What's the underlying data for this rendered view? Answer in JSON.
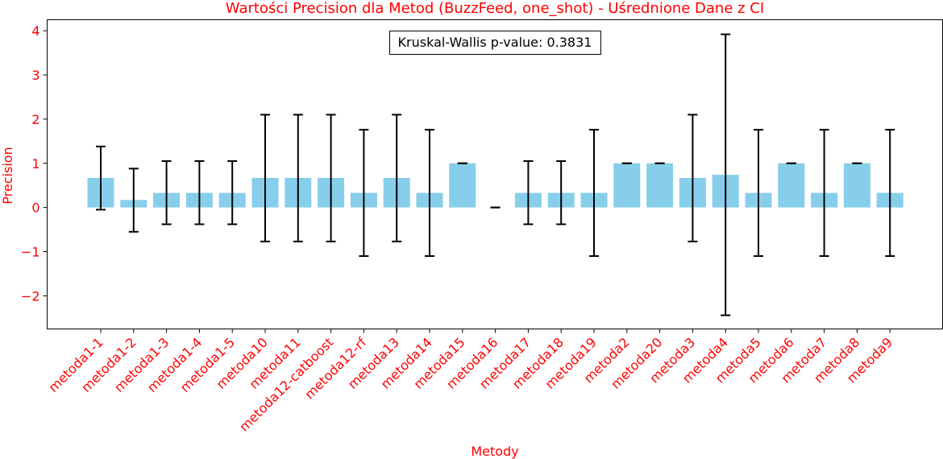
{
  "chart_data": {
    "type": "bar",
    "title": "Wartości Precision dla Metod (BuzzFeed, one_shot) - Uśrednione Dane z CI",
    "xlabel": "Metody",
    "ylabel": "Precision",
    "ylim": [
      -2.75,
      4.25
    ],
    "yticks": [
      -2,
      -1,
      0,
      1,
      2,
      3,
      4
    ],
    "ytick_labels": [
      "−2",
      "−1",
      "0",
      "1",
      "2",
      "3",
      "4"
    ],
    "annotation": "Kruskal-Wallis p-value: 0.3831",
    "grid": false,
    "bar_color": "#87ceeb",
    "error_color": "#000000",
    "text_color": "#ff0000",
    "categories": [
      "metoda1-1",
      "metoda1-2",
      "metoda1-3",
      "metoda1-4",
      "metoda1-5",
      "metoda10",
      "metoda11",
      "metoda12-catboost",
      "metoda12-rf",
      "metoda13",
      "metoda14",
      "metoda15",
      "metoda16",
      "metoda17",
      "metoda18",
      "metoda19",
      "metoda2",
      "metoda20",
      "metoda3",
      "metoda4",
      "metoda5",
      "metoda6",
      "metoda7",
      "metoda8",
      "metoda9"
    ],
    "values": [
      0.67,
      0.17,
      0.33,
      0.33,
      0.33,
      0.67,
      0.67,
      0.67,
      0.33,
      0.67,
      0.33,
      1.0,
      0.0,
      0.33,
      0.33,
      0.33,
      1.0,
      1.0,
      0.67,
      0.74,
      0.33,
      1.0,
      0.33,
      1.0,
      0.33
    ],
    "ci_low": [
      -0.05,
      -0.55,
      -0.38,
      -0.38,
      -0.38,
      -0.77,
      -0.77,
      -0.77,
      -1.1,
      -0.77,
      -1.1,
      1.0,
      0.0,
      -0.38,
      -0.38,
      -1.1,
      1.0,
      1.0,
      -0.77,
      -2.44,
      -1.1,
      1.0,
      -1.1,
      1.0,
      -1.1
    ],
    "ci_high": [
      1.38,
      0.88,
      1.05,
      1.05,
      1.05,
      2.1,
      2.1,
      2.1,
      1.76,
      2.1,
      1.76,
      1.0,
      0.0,
      1.05,
      1.05,
      1.76,
      1.0,
      1.0,
      2.1,
      3.92,
      1.76,
      1.0,
      1.76,
      1.0,
      1.76
    ]
  }
}
